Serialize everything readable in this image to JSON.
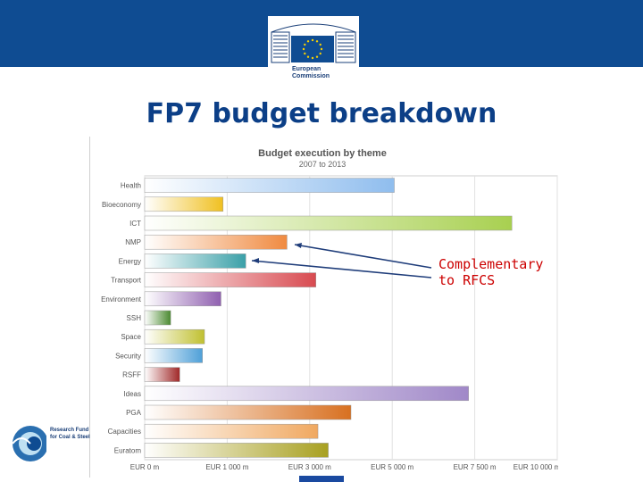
{
  "header": {
    "logo_line1": "European",
    "logo_line2": "Commission"
  },
  "slide": {
    "title": "FP7 budget breakdown",
    "annotation": "Complementary\nto RFCS"
  },
  "footer_logo": {
    "text_line1": "Research Fund",
    "text_line2": "for Coal & Steel"
  },
  "colors": {
    "header_blue": "#0f4c92",
    "title_blue": "#0c3f87",
    "annotation_red": "#cc0000",
    "arrow_navy": "#1f3d7a"
  },
  "chart_data": {
    "type": "bar",
    "orientation": "horizontal",
    "title": "Budget execution by theme",
    "subtitle": "2007 to 2013",
    "grid": true,
    "xlim": [
      0,
      10000
    ],
    "xticks": [
      "EUR 0 m",
      "EUR 1 000 m",
      "EUR 3 000 m",
      "EUR 5 000 m",
      "EUR 7 500 m",
      "EUR 10 000 m"
    ],
    "categories": [
      "Health",
      "Bioeconomy",
      "ICT",
      "NMP",
      "Energy",
      "Transport",
      "Environment",
      "SSH",
      "Space",
      "Security",
      "RSFF",
      "Ideas",
      "PGA",
      "Capacities",
      "Euratom"
    ],
    "values": [
      6050,
      1900,
      8900,
      3450,
      2450,
      4150,
      1850,
      630,
      1450,
      1400,
      850,
      7850,
      5000,
      4200,
      4450
    ],
    "colors": [
      "#8fbdee",
      "#f0c020",
      "#a8d050",
      "#f08a40",
      "#3aa0a8",
      "#d84a50",
      "#9060b0",
      "#4a8a30",
      "#c0c030",
      "#4fa0d8",
      "#a02828",
      "#a088c8",
      "#d87020",
      "#f0a860",
      "#a8a020"
    ],
    "annotated_themes": [
      "NMP",
      "Energy"
    ]
  }
}
